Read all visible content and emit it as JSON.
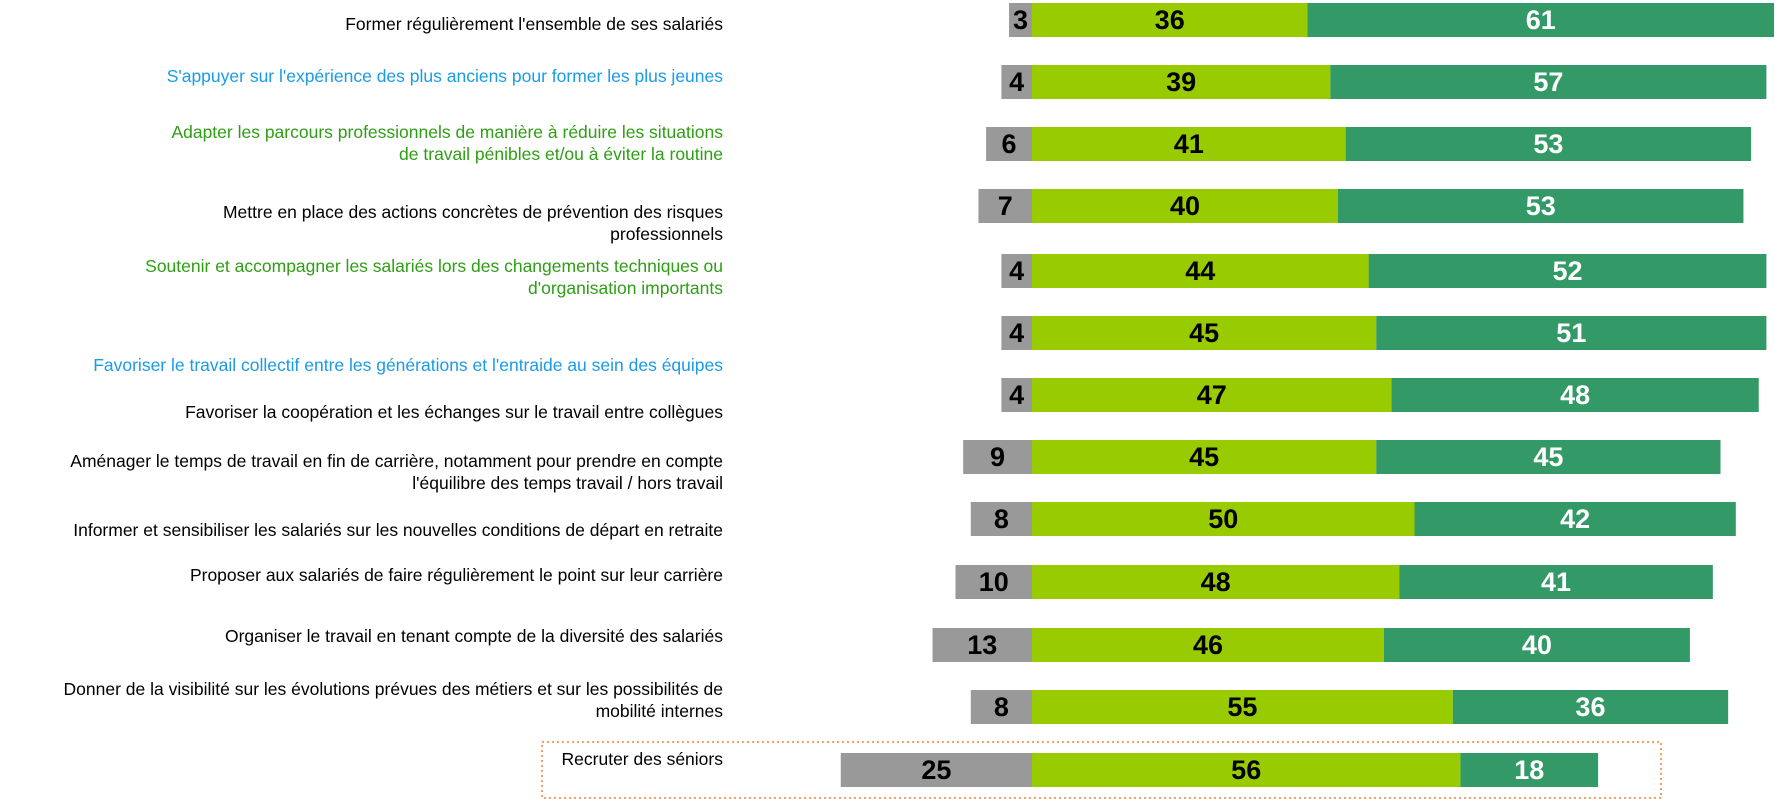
{
  "chart_data": {
    "type": "diverging-bar",
    "categories": [
      "Former régulièrement l'ensemble de ses salariés",
      "S'appuyer sur l'expérience des plus anciens pour former les plus jeunes",
      "Adapter les parcours professionnels de manière à réduire les situations\nde travail pénibles et/ou à éviter la routine",
      "Mettre en place des actions concrètes de prévention des risques\nprofessionnels",
      "Soutenir et accompagner les salariés lors des changements techniques ou\nd'organisation importants",
      "Favoriser le travail collectif entre les générations et l'entraide au sein des équipes",
      "Favoriser la coopération et les échanges sur le travail entre collègues",
      "Aménager le temps de travail en fin de carrière, notamment pour prendre en compte\nl'équilibre des temps travail / hors travail",
      "Informer et sensibiliser les salariés sur les nouvelles conditions de départ en retraite",
      "Proposer aux salariés de faire régulièrement le point sur leur carrière",
      "Organiser le travail en tenant compte de la diversité des salariés",
      "Donner de la visibilité sur les évolutions prévues des métiers et sur les possibilités de\nmobilité internes",
      "Recruter des séniors"
    ],
    "label_colors": [
      "#000000",
      "#1a9be6",
      "#2e9e14",
      "#000000",
      "#2e9e14",
      "#1a9be6",
      "#000000",
      "#000000",
      "#000000",
      "#000000",
      "#000000",
      "#000000",
      "#000000"
    ],
    "series": [
      {
        "color": "#999999",
        "text_color": "#000000",
        "side": "left",
        "values": [
          3,
          4,
          6,
          7,
          4,
          4,
          4,
          9,
          8,
          10,
          13,
          8,
          25
        ]
      },
      {
        "color": "#99cc00",
        "text_color": "#000000",
        "side": "right",
        "values": [
          36,
          39,
          41,
          40,
          44,
          45,
          47,
          45,
          50,
          48,
          46,
          55,
          56
        ]
      },
      {
        "color": "#339966",
        "text_color": "#ffffff",
        "side": "right",
        "values": [
          61,
          57,
          53,
          53,
          52,
          51,
          48,
          45,
          42,
          41,
          40,
          36,
          18
        ]
      }
    ]
  }
}
